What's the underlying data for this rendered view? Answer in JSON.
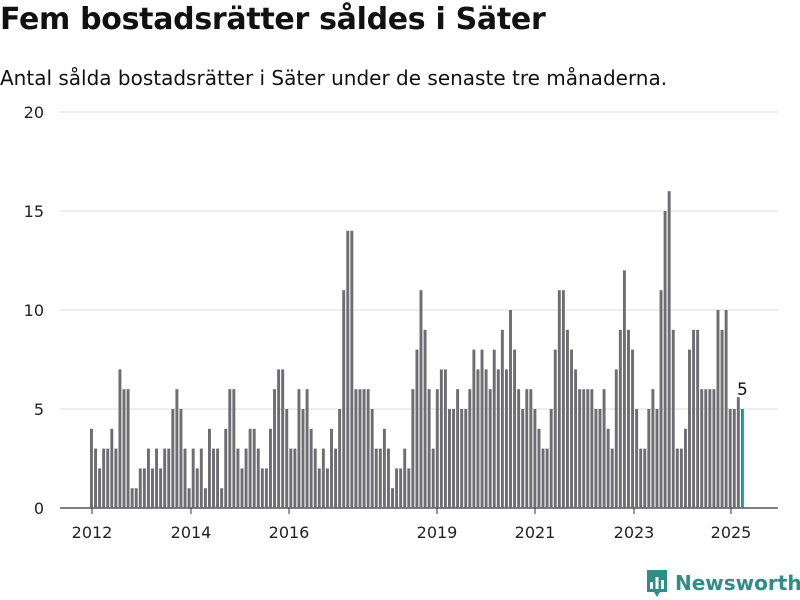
{
  "header": {
    "title": "Fem bostadsrätter såldes i Säter",
    "subtitle": "Antal sålda bostadsrätter i Säter under de senaste tre månaderna."
  },
  "brand": {
    "name": "Newsworthy",
    "logo_icon": "newsworthy-chart-icon",
    "color": "#2b8f87"
  },
  "colors": {
    "bar": "#6e6d72",
    "highlight": "#1a9a8e",
    "grid": "#dddddd"
  },
  "chart_data": {
    "type": "bar",
    "xlabel": "",
    "ylabel": "",
    "ylim": [
      0,
      20
    ],
    "yticks": [
      0,
      5,
      10,
      15,
      20
    ],
    "grid": true,
    "x_tick_labels": [
      "2012",
      "2014",
      "2016",
      "2019",
      "2021",
      "2023",
      "2025"
    ],
    "periods_start": "2012-01",
    "periods_end": "2025-03",
    "period": "rolling three months, monthly",
    "values": [
      4,
      3,
      2,
      3,
      3,
      4,
      3,
      7,
      6,
      6,
      1,
      1,
      2,
      2,
      3,
      2,
      3,
      2,
      3,
      3,
      5,
      6,
      5,
      3,
      1,
      3,
      2,
      3,
      1,
      4,
      3,
      3,
      1,
      4,
      6,
      6,
      3,
      2,
      3,
      4,
      4,
      3,
      2,
      2,
      4,
      6,
      7,
      7,
      5,
      3,
      3,
      6,
      5,
      6,
      4,
      3,
      2,
      3,
      2,
      4,
      3,
      5,
      11,
      14,
      14,
      6,
      6,
      6,
      6,
      5,
      3,
      3,
      4,
      3,
      1,
      2,
      2,
      3,
      2,
      6,
      8,
      11,
      9,
      6,
      3,
      6,
      7,
      7,
      5,
      5,
      6,
      5,
      5,
      6,
      8,
      7,
      8,
      7,
      6,
      8,
      7,
      9,
      7,
      10,
      8,
      6,
      5,
      6,
      6,
      5,
      4,
      3,
      3,
      5,
      8,
      11,
      11,
      9,
      8,
      7,
      6,
      6,
      6,
      6,
      5,
      5,
      6,
      4,
      3,
      7,
      9,
      12,
      9,
      8,
      5,
      3,
      3,
      5,
      6,
      5,
      11,
      15,
      16,
      9,
      3,
      3,
      4,
      8,
      9,
      9,
      6,
      6,
      6,
      6,
      10,
      9,
      10,
      5,
      5,
      5.6,
      5
    ],
    "highlight_label": "5"
  }
}
